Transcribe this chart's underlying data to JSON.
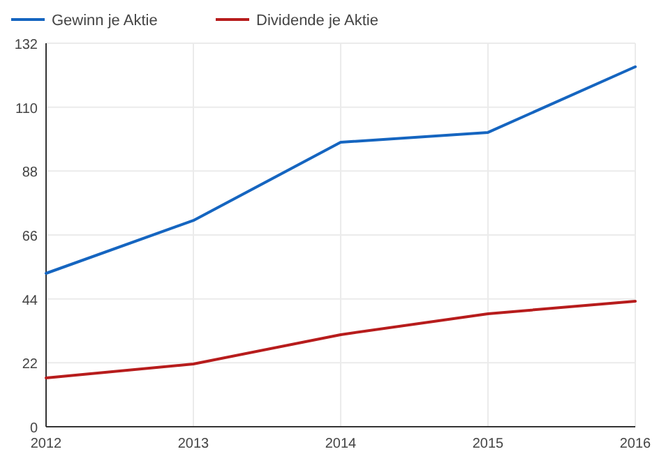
{
  "chart_data": {
    "type": "line",
    "x": [
      2012,
      2013,
      2014,
      2015,
      2016
    ],
    "series": [
      {
        "name": "Gewinn je Aktie",
        "color": "#1565c0",
        "values": [
          52.8,
          71,
          97.9,
          101.3,
          123.9
        ]
      },
      {
        "name": "Dividende je Aktie",
        "color": "#b71c1c",
        "values": [
          16.8,
          21.6,
          31.7,
          38.9,
          43.2
        ]
      }
    ],
    "xlim": [
      2012,
      2016
    ],
    "xticks": [
      2012,
      2013,
      2014,
      2015,
      2016
    ],
    "ylim": [
      0,
      132
    ],
    "yticks": [
      0,
      22,
      44,
      66,
      88,
      110,
      132
    ],
    "grid": true,
    "legend": "top left",
    "marker": "none",
    "line_style": "solid"
  }
}
